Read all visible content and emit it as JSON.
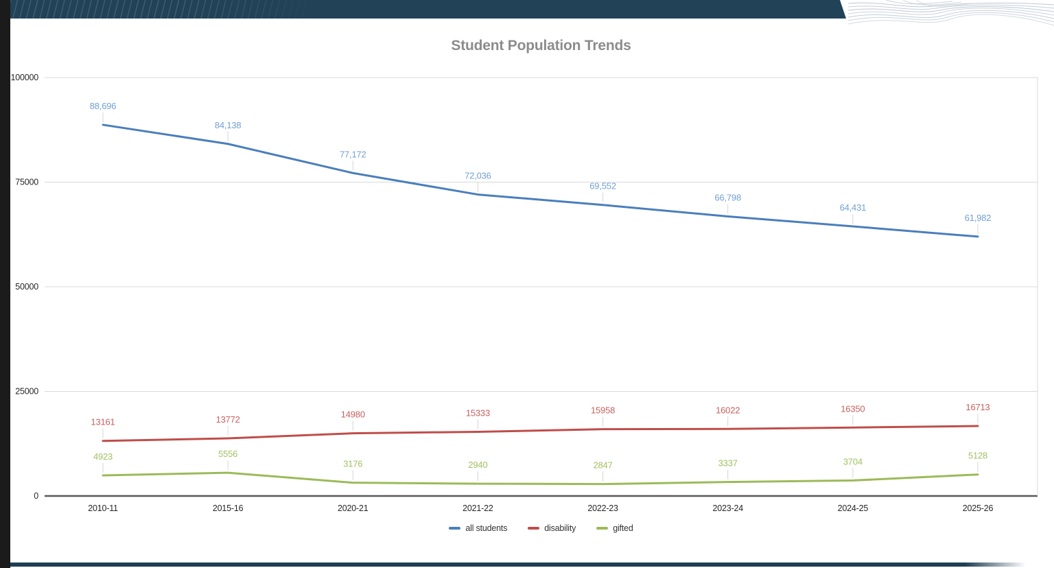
{
  "chart_data": {
    "type": "line",
    "title": "Student Population Trends",
    "categories": [
      "2010-11",
      "2015-16",
      "2020-21",
      "2021-22",
      "2022-23",
      "2023-24",
      "2024-25",
      "2025-26"
    ],
    "y_ticks": [
      "100000",
      "75000",
      "50000",
      "25000",
      "0"
    ],
    "ylim": [
      0,
      100000
    ],
    "grid": true,
    "legend_position": "bottom",
    "colors": {
      "grid": "#d9d9d9",
      "axis": "#595959",
      "tick_text": "#262626",
      "leader": "#d4d4d4",
      "title": "#8c8c8c",
      "banner_navy": "#214257"
    },
    "series": [
      {
        "name": "all students",
        "color": "#4a7ebc",
        "label_color": "#71a0d4",
        "values": [
          88696,
          84138,
          77172,
          72036,
          69552,
          66798,
          64431,
          61982
        ],
        "labels": [
          "88,696",
          "84,138",
          "77,172",
          "72,036",
          "69,552",
          "66,798",
          "64,431",
          "61,982"
        ]
      },
      {
        "name": "disability",
        "color": "#bf4d4a",
        "label_color": "#c7615e",
        "values": [
          13161,
          13772,
          14980,
          15333,
          15958,
          16022,
          16350,
          16713
        ],
        "labels": [
          "13161",
          "13772",
          "14980",
          "15333",
          "15958",
          "16022",
          "16350",
          "16713"
        ]
      },
      {
        "name": "gifted",
        "color": "#9cba59",
        "label_color": "#a2c162",
        "values": [
          4923,
          5556,
          3176,
          2940,
          2847,
          3337,
          3704,
          5128
        ],
        "labels": [
          "4923",
          "5556",
          "3176",
          "2940",
          "2847",
          "3337",
          "3704",
          "5128"
        ]
      }
    ]
  }
}
